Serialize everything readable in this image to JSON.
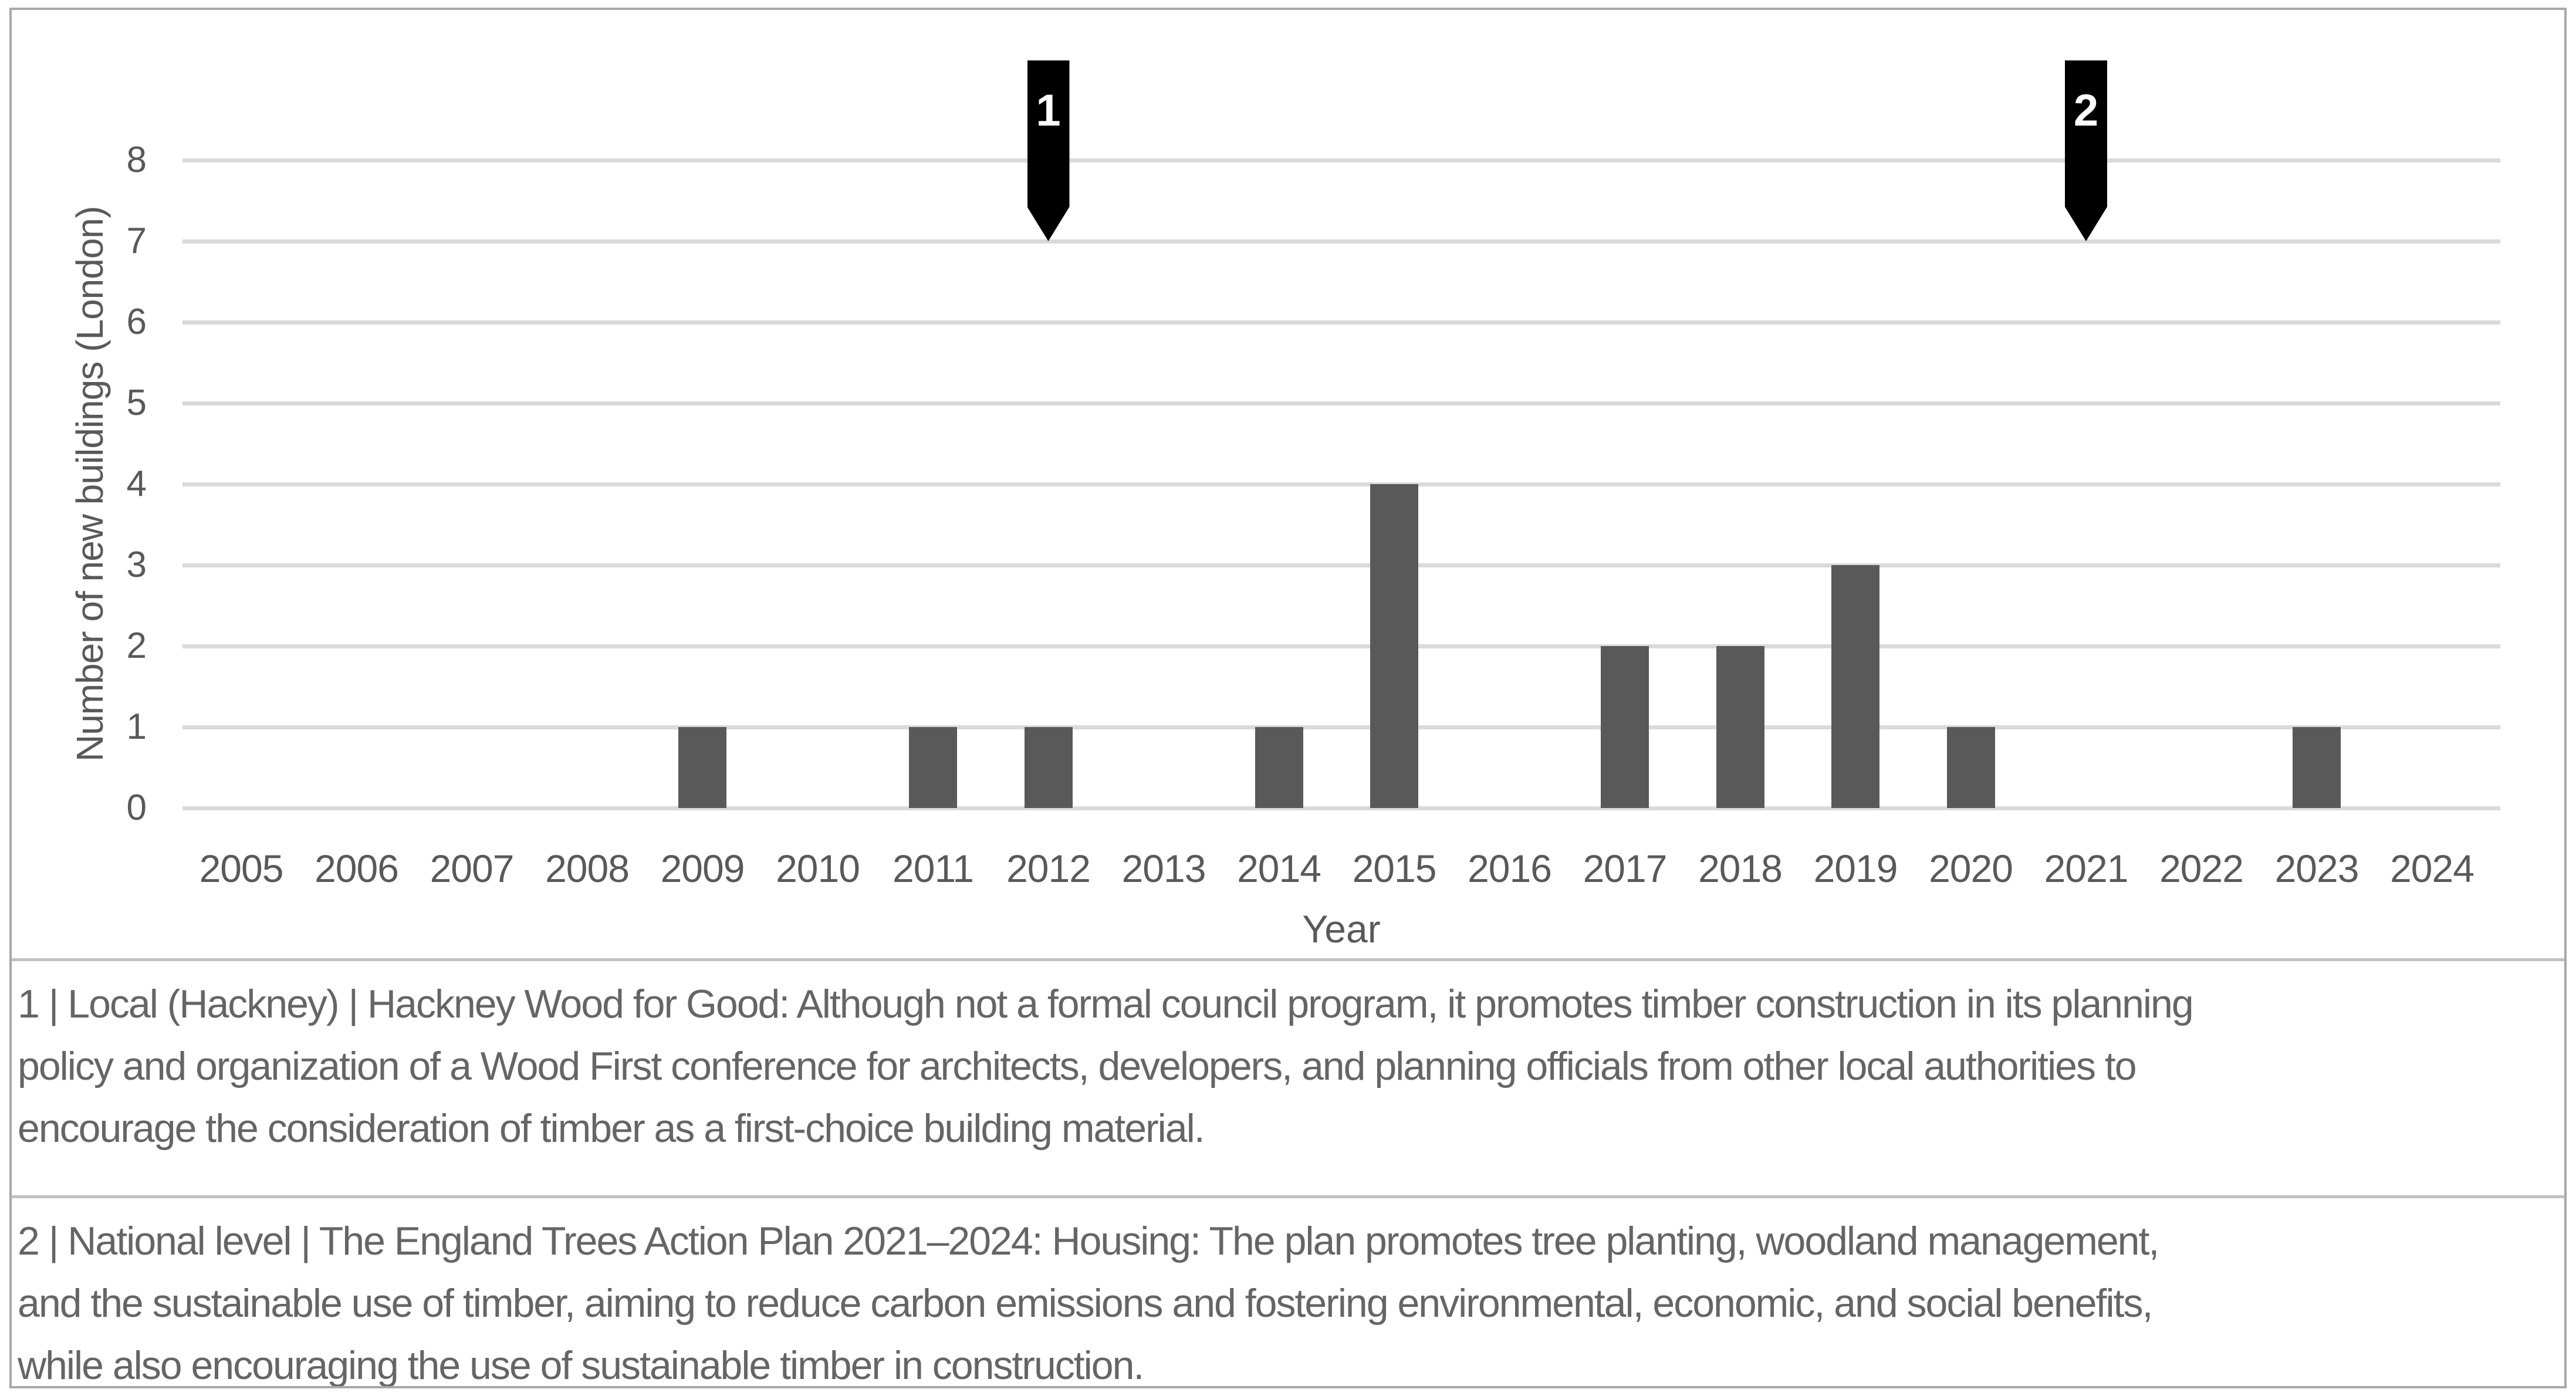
{
  "chart_data": {
    "type": "bar",
    "title": "",
    "categories": [
      "2005",
      "2006",
      "2007",
      "2008",
      "2009",
      "2010",
      "2011",
      "2012",
      "2013",
      "2014",
      "2015",
      "2016",
      "2017",
      "2018",
      "2019",
      "2020",
      "2021",
      "2022",
      "2023",
      "2024"
    ],
    "values": [
      0,
      0,
      0,
      0,
      1,
      0,
      1,
      1,
      0,
      1,
      4,
      0,
      2,
      2,
      3,
      1,
      0,
      0,
      1,
      0
    ],
    "xlabel": "Year",
    "ylabel": "Number of new buildings (London)",
    "ylim": [
      0,
      8
    ],
    "yticks": [
      0,
      1,
      2,
      3,
      4,
      5,
      6,
      7,
      8
    ],
    "grid": "horizontal",
    "legend": "none",
    "bar_color": "#595959",
    "gridline_color": "#dadada",
    "annotations": [
      {
        "label": "1",
        "category": "2012",
        "color": "#000000",
        "text_color": "#ffffff"
      },
      {
        "label": "2",
        "category": "2021",
        "color": "#000000",
        "text_color": "#ffffff"
      }
    ]
  },
  "notes": [
    {
      "id": "1",
      "lines": [
        "1 | Local (Hackney) | Hackney Wood for Good: Although not a formal council program, it promotes timber construction in its planning",
        "policy and organization of a Wood First conference for architects, developers, and planning officials from other local authorities to",
        "encourage the consideration of timber as a first-choice building material."
      ]
    },
    {
      "id": "2",
      "lines": [
        "2 | National level | The England Trees Action Plan 2021–2024: Housing: The plan promotes tree planting, woodland management,",
        "and the sustainable use of timber, aiming to reduce carbon emissions and fostering environmental, economic, and social benefits,",
        "while also encouraging the use of sustainable timber in construction."
      ]
    }
  ]
}
